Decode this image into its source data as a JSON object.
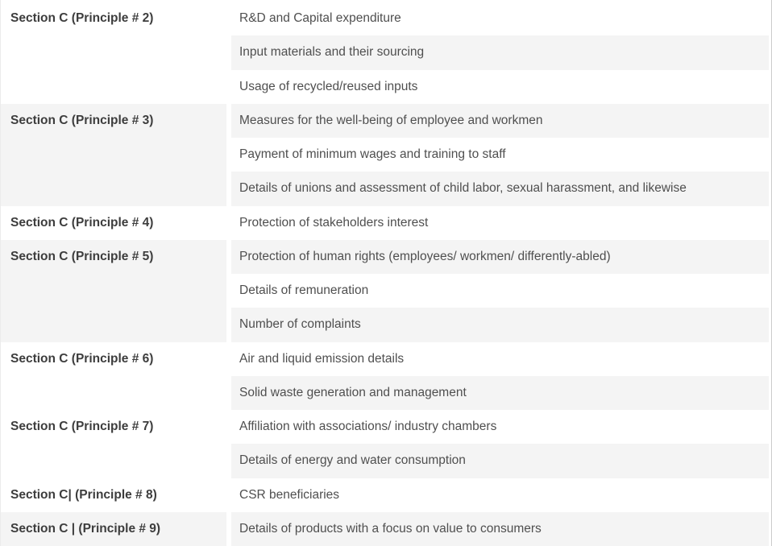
{
  "table": {
    "stripe_color": "#f4f4f4",
    "text_color": "#4f4f4f",
    "section_text_color": "#3d3d3d",
    "groups": [
      {
        "section": "Section C (Principle # 2)",
        "topics": [
          "R&D and Capital expenditure",
          "Input materials and their sourcing",
          "Usage of recycled/reused inputs"
        ]
      },
      {
        "section": "Section C (Principle # 3)",
        "topics": [
          "Measures for the well-being of employee and workmen",
          "Payment of minimum wages and training to staff",
          "Details of unions and assessment of child labor, sexual harassment, and likewise"
        ]
      },
      {
        "section": "Section C (Principle # 4)",
        "topics": [
          "Protection of stakeholders interest"
        ]
      },
      {
        "section": "Section C (Principle # 5)",
        "topics": [
          "Protection of human rights (employees/ workmen/ differently-abled)",
          "Details of remuneration",
          "Number of complaints"
        ]
      },
      {
        "section": "Section C (Principle # 6)",
        "topics": [
          "Air and liquid emission details",
          "Solid waste generation and management"
        ]
      },
      {
        "section": "Section C (Principle # 7)",
        "topics": [
          "Affiliation with associations/ industry chambers",
          "Details of energy and water consumption"
        ]
      },
      {
        "section": "Section C| (Principle # 8)",
        "topics": [
          "CSR beneficiaries"
        ]
      },
      {
        "section": "Section C | (Principle # 9)",
        "topics": [
          "Details of products with a focus on value to consumers"
        ]
      }
    ]
  }
}
